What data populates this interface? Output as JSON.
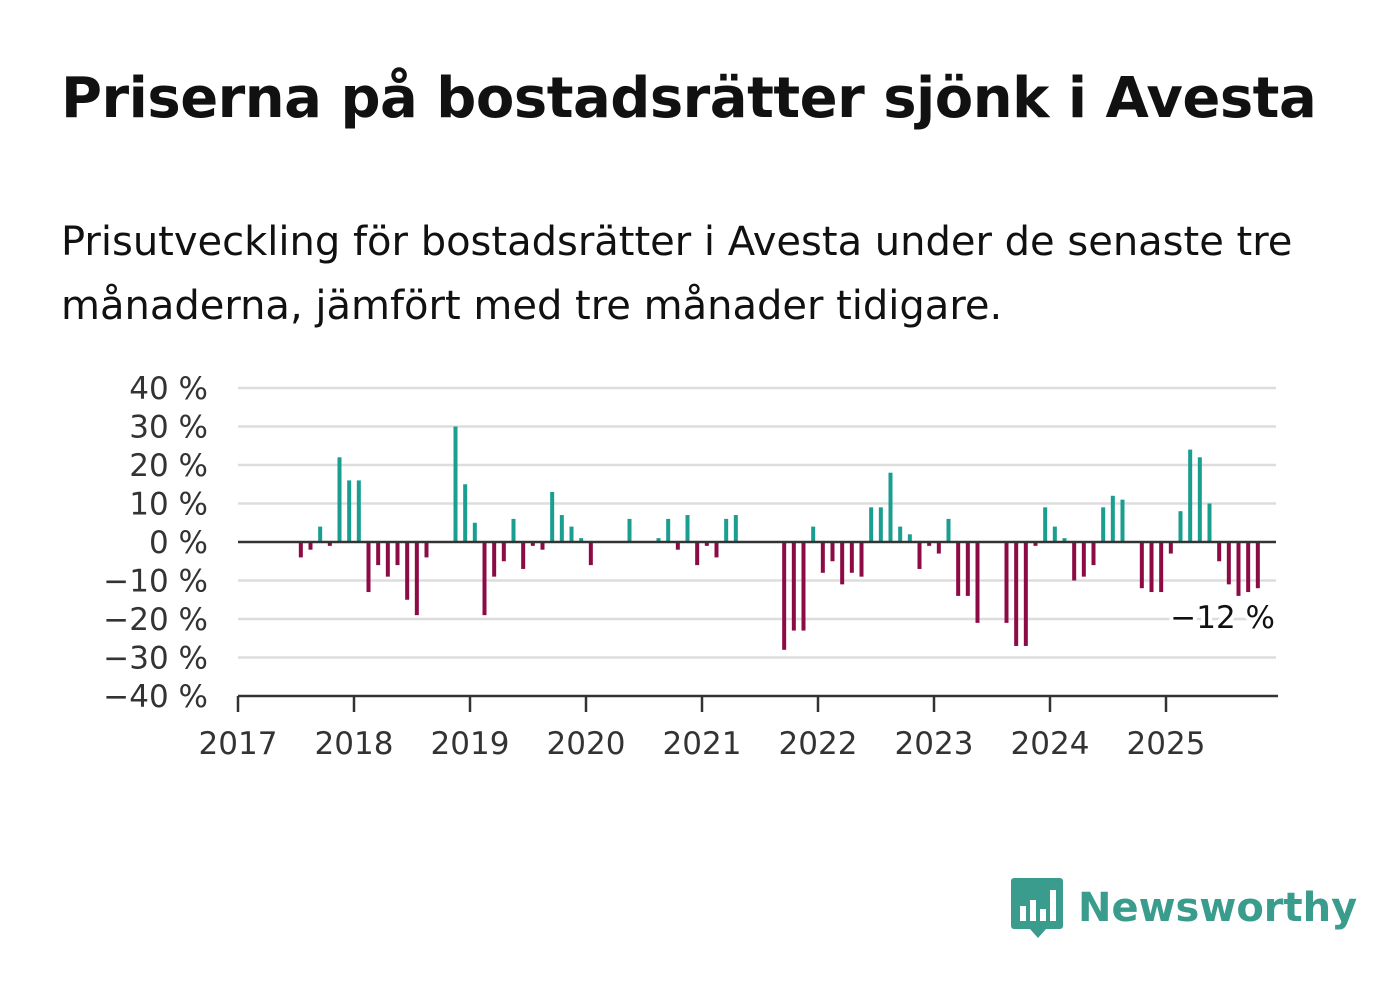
{
  "title": "Priserna på bostadsrätter sjönk i Avesta",
  "subtitle": "Prisutveckling för bostadsrätter i Avesta under de senaste tre månaderna, jämfört med tre månader tidigare.",
  "brand": {
    "name": "Newsworthy",
    "icon": "newsworthy-logo-icon",
    "color": "#3a9c8c"
  },
  "colors": {
    "positive": "#1a9e8f",
    "negative": "#8c0a45",
    "grid": "#dddddd",
    "axis": "#333333"
  },
  "chart_data": {
    "type": "bar",
    "title": "Priserna på bostadsrätter sjönk i Avesta",
    "xlabel": "",
    "ylabel": "",
    "x_start": "2017-01",
    "ylim": [
      -40,
      40
    ],
    "xlim": [
      2017,
      2026
    ],
    "yticks": [
      40,
      30,
      20,
      10,
      0,
      -10,
      -20,
      -30,
      -40
    ],
    "ytick_labels": [
      "40 %",
      "30 %",
      "20 %",
      "10 %",
      "0 %",
      "−10 %",
      "−20 %",
      "−30 %",
      "−40 %"
    ],
    "xtick_labels": [
      "2017",
      "2018",
      "2019",
      "2020",
      "2021",
      "2022",
      "2023",
      "2024",
      "2025"
    ],
    "grid": true,
    "end_label": "−12 %",
    "values": [
      null,
      null,
      null,
      null,
      null,
      null,
      -4,
      -2,
      4,
      -1,
      22,
      16,
      16,
      -13,
      -6,
      -9,
      -6,
      -15,
      -19,
      -4,
      null,
      null,
      30,
      15,
      5,
      -19,
      -9,
      -5,
      6,
      -7,
      -1,
      -2,
      13,
      7,
      4,
      1,
      -6,
      null,
      null,
      null,
      6,
      null,
      null,
      1,
      6,
      -2,
      7,
      -6,
      -1,
      -4,
      6,
      7,
      null,
      null,
      null,
      null,
      -28,
      -23,
      -23,
      4,
      -8,
      -5,
      -11,
      -8,
      -9,
      9,
      9,
      18,
      4,
      2,
      -7,
      -1,
      -3,
      6,
      -14,
      -14,
      -21,
      null,
      null,
      -21,
      -27,
      -27,
      -1,
      9,
      4,
      1,
      -10,
      -9,
      -6,
      9,
      12,
      11,
      null,
      -12,
      -13,
      -13,
      -3,
      8,
      24,
      22,
      10,
      -5,
      -11,
      -14,
      -13,
      -12
    ]
  }
}
